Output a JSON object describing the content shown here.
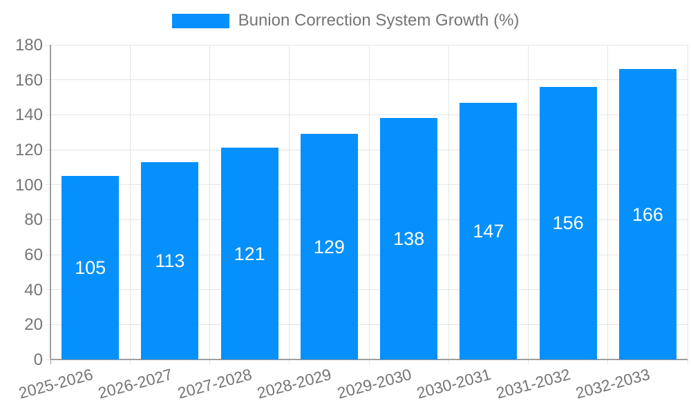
{
  "legend": {
    "label": "Bunion Correction System Growth (%)"
  },
  "chart_data": {
    "type": "bar",
    "title": "Bunion Correction System Growth (%)",
    "categories": [
      "2025-2026",
      "2026-2027",
      "2027-2028",
      "2028-2029",
      "2029-2030",
      "2030-2031",
      "2031-2032",
      "2032-2033"
    ],
    "values": [
      105,
      113,
      121,
      129,
      138,
      147,
      156,
      166
    ],
    "xlabel": "",
    "ylabel": "",
    "ylim": [
      0,
      180
    ],
    "ytick_step": 20,
    "ytick_labels": [
      "0",
      "20",
      "40",
      "60",
      "80",
      "100",
      "120",
      "140",
      "160",
      "180"
    ],
    "grid": true,
    "legend_position": "top",
    "bar_labels_inside": true,
    "colors": {
      "bar": "#0690FB",
      "bar_label": "#FFFFFF",
      "axis": "#9E9E9E",
      "grid": "#E4E4E4",
      "text": "#757575"
    }
  }
}
